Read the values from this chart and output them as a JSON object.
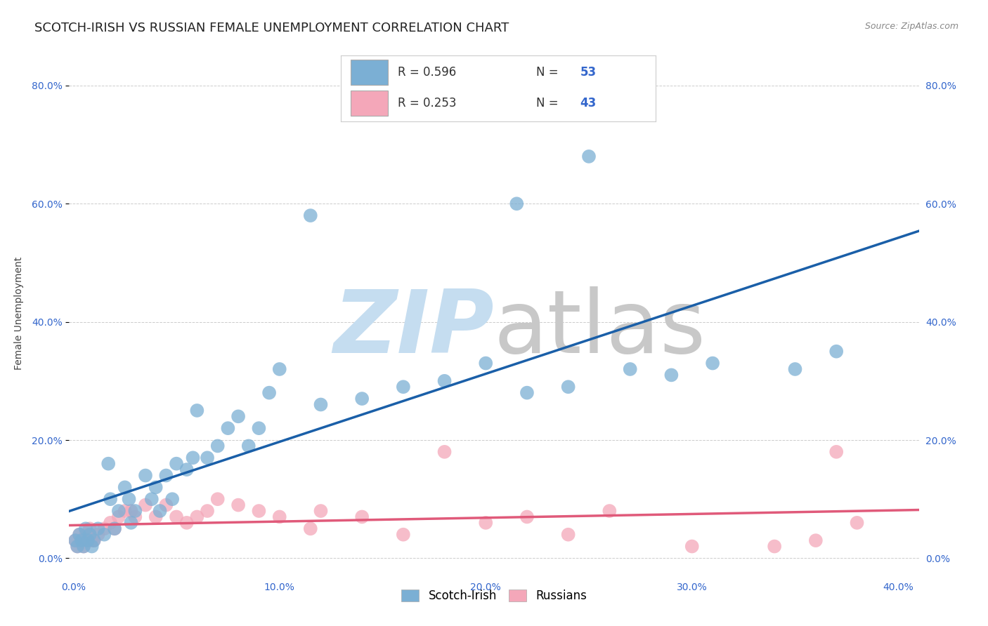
{
  "title": "SCOTCH-IRISH VS RUSSIAN FEMALE UNEMPLOYMENT CORRELATION CHART",
  "source": "Source: ZipAtlas.com",
  "ylabel": "Female Unemployment",
  "xlabel_ticks": [
    "0.0%",
    "10.0%",
    "20.0%",
    "30.0%",
    "40.0%"
  ],
  "ylabel_ticks": [
    "0.0%",
    "20.0%",
    "40.0%",
    "60.0%",
    "80.0%"
  ],
  "xlim": [
    -0.002,
    0.41
  ],
  "ylim": [
    -0.03,
    0.86
  ],
  "legend_bottom": "Scotch-Irish",
  "legend_bottom2": "Russians",
  "scotch_irish_color": "#7bafd4",
  "russians_color": "#f4a7b9",
  "scotch_irish_line_color": "#1a5fa8",
  "russians_line_color": "#e05a7a",
  "scotch_irish_x": [
    0.001,
    0.002,
    0.003,
    0.004,
    0.005,
    0.006,
    0.007,
    0.008,
    0.009,
    0.01,
    0.012,
    0.015,
    0.017,
    0.018,
    0.02,
    0.022,
    0.025,
    0.027,
    0.028,
    0.03,
    0.035,
    0.038,
    0.04,
    0.042,
    0.045,
    0.048,
    0.05,
    0.055,
    0.058,
    0.06,
    0.065,
    0.07,
    0.075,
    0.08,
    0.085,
    0.09,
    0.095,
    0.1,
    0.115,
    0.12,
    0.14,
    0.16,
    0.18,
    0.2,
    0.215,
    0.22,
    0.24,
    0.25,
    0.27,
    0.29,
    0.31,
    0.35,
    0.37
  ],
  "scotch_irish_y": [
    0.03,
    0.02,
    0.04,
    0.03,
    0.02,
    0.05,
    0.03,
    0.04,
    0.02,
    0.03,
    0.05,
    0.04,
    0.16,
    0.1,
    0.05,
    0.08,
    0.12,
    0.1,
    0.06,
    0.08,
    0.14,
    0.1,
    0.12,
    0.08,
    0.14,
    0.1,
    0.16,
    0.15,
    0.17,
    0.25,
    0.17,
    0.19,
    0.22,
    0.24,
    0.19,
    0.22,
    0.28,
    0.32,
    0.58,
    0.26,
    0.27,
    0.29,
    0.3,
    0.33,
    0.6,
    0.28,
    0.29,
    0.68,
    0.32,
    0.31,
    0.33,
    0.32,
    0.35
  ],
  "russians_x": [
    0.001,
    0.002,
    0.003,
    0.004,
    0.005,
    0.006,
    0.007,
    0.008,
    0.009,
    0.01,
    0.012,
    0.015,
    0.018,
    0.02,
    0.022,
    0.025,
    0.028,
    0.03,
    0.035,
    0.04,
    0.045,
    0.05,
    0.055,
    0.06,
    0.065,
    0.07,
    0.08,
    0.09,
    0.1,
    0.115,
    0.12,
    0.14,
    0.16,
    0.18,
    0.2,
    0.22,
    0.24,
    0.26,
    0.3,
    0.34,
    0.36,
    0.37,
    0.38
  ],
  "russians_y": [
    0.03,
    0.02,
    0.04,
    0.03,
    0.02,
    0.04,
    0.03,
    0.05,
    0.03,
    0.03,
    0.04,
    0.05,
    0.06,
    0.05,
    0.07,
    0.08,
    0.08,
    0.07,
    0.09,
    0.07,
    0.09,
    0.07,
    0.06,
    0.07,
    0.08,
    0.1,
    0.09,
    0.08,
    0.07,
    0.05,
    0.08,
    0.07,
    0.04,
    0.18,
    0.06,
    0.07,
    0.04,
    0.08,
    0.02,
    0.02,
    0.03,
    0.18,
    0.06
  ],
  "grid_color": "#cccccc",
  "background_color": "#ffffff",
  "watermark_zip": "ZIP",
  "watermark_atlas": "atlas",
  "watermark_color_zip": "#c5ddf0",
  "watermark_color_atlas": "#c8c8c8",
  "title_fontsize": 13,
  "axis_label_fontsize": 10,
  "tick_fontsize": 10,
  "legend_fontsize": 12
}
